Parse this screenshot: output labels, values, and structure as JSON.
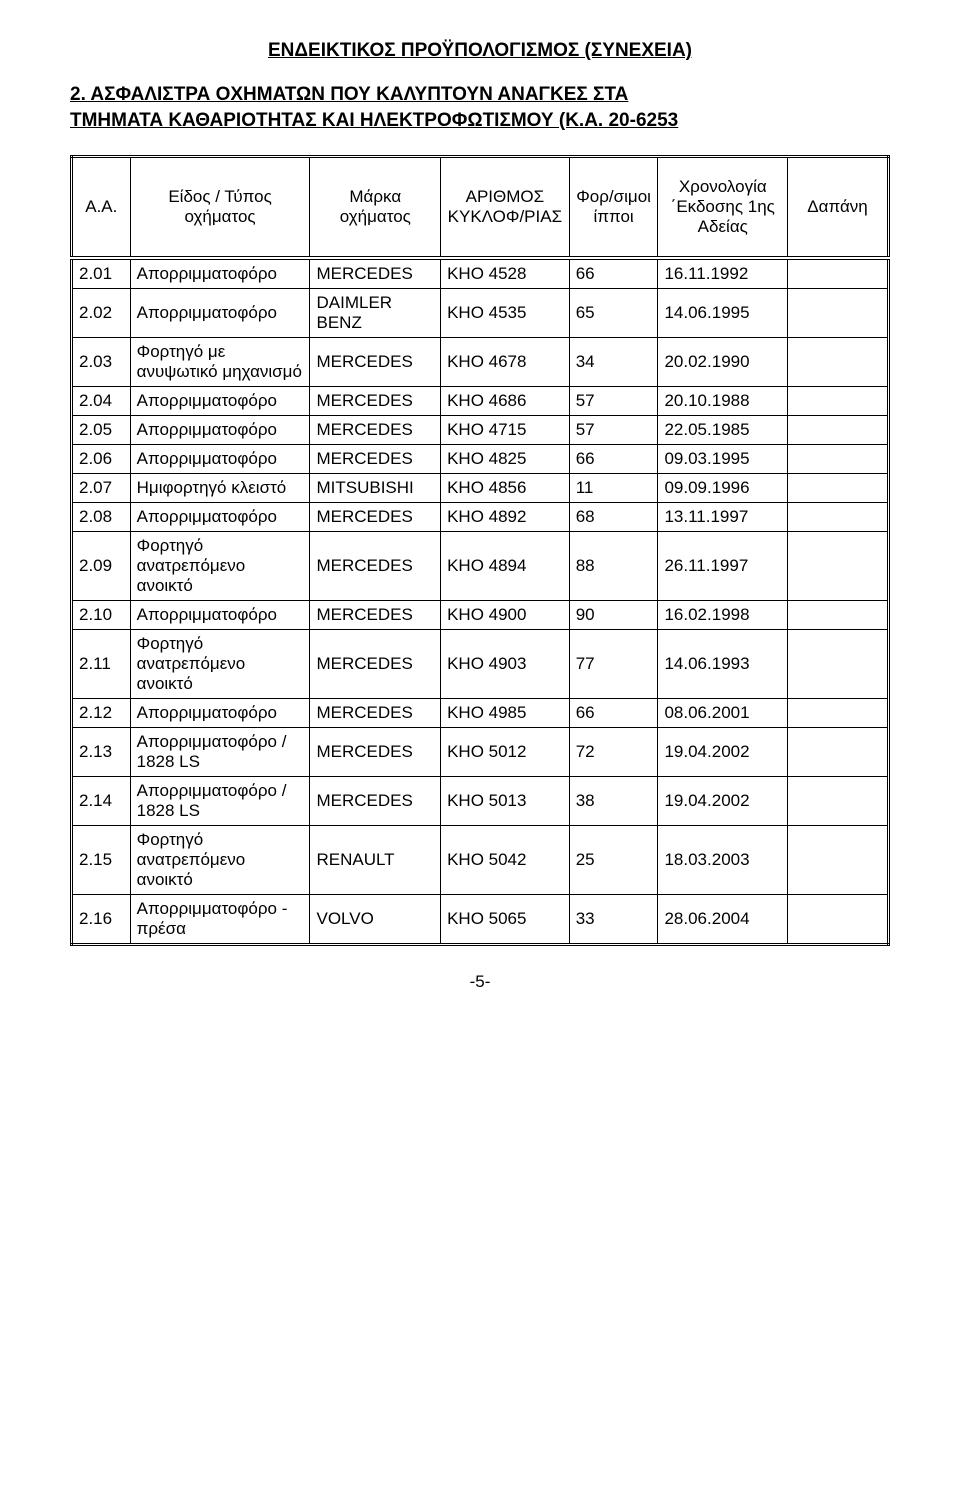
{
  "title": "ΕΝΔΕΙΚΤΙΚΟΣ ΠΡΟΫΠΟΛΟΓΙΣΜΟΣ (ΣΥΝΕΧΕΙΑ)",
  "subtitle_line1": "2.  ΑΣΦΑΛΙΣΤΡΑ ΟΧΗΜΑΤΩΝ ΠΟΥ ΚΑΛΥΠΤΟΥΝ ΑΝΑΓΚΕΣ ΣΤΑ",
  "subtitle_line2": "ΤΜΗΜΑΤΑ ΚΑΘΑΡΙΟΤΗΤΑΣ ΚΑΙ ΗΛΕΚΤΡΟΦΩΤΙΣΜΟΥ (Κ.Α. 20-6253",
  "headers": {
    "aa": "Α.Α.",
    "type": "Είδος / Τύπος οχήματος",
    "brand": "Μάρκα οχήματος",
    "plate": "ΑΡΙΘΜΟΣ ΚΥΚΛΟΦ/ΡΙΑΣ",
    "hp": "Φορ/σιμοι ίπποι",
    "date": "Χρονολογία ΄Εκδοσης 1ης Αδείας",
    "cost": "Δαπάνη"
  },
  "rows": [
    {
      "aa": "2.01",
      "type": "Απορριμματοφόρο",
      "brand": "MERCEDES",
      "plate": "ΚΗΟ 4528",
      "hp": "66",
      "date": "16.11.1992",
      "cost": ""
    },
    {
      "aa": "2.02",
      "type": "Απορριμματοφόρο",
      "brand": "DAIMLER BENZ",
      "plate": "ΚΗΟ 4535",
      "hp": "65",
      "date": "14.06.1995",
      "cost": ""
    },
    {
      "aa": "2.03",
      "type": "Φορτηγό με ανυψωτικό μηχανισμό",
      "brand": "MERCEDES",
      "plate": "ΚΗΟ 4678",
      "hp": "34",
      "date": "20.02.1990",
      "cost": ""
    },
    {
      "aa": "2.04",
      "type": "Απορριμματοφόρο",
      "brand": "MERCEDES",
      "plate": "ΚΗΟ 4686",
      "hp": "57",
      "date": "20.10.1988",
      "cost": ""
    },
    {
      "aa": "2.05",
      "type": "Απορριμματοφόρο",
      "brand": "MERCEDES",
      "plate": "ΚΗΟ 4715",
      "hp": "57",
      "date": "22.05.1985",
      "cost": ""
    },
    {
      "aa": "2.06",
      "type": "Απορριμματοφόρο",
      "brand": "MERCEDES",
      "plate": "ΚΗΟ 4825",
      "hp": "66",
      "date": "09.03.1995",
      "cost": ""
    },
    {
      "aa": "2.07",
      "type": "Ημιφορτηγό κλειστό",
      "brand": "MITSUBISHI",
      "plate": "ΚΗΟ 4856",
      "hp": "11",
      "date": "09.09.1996",
      "cost": ""
    },
    {
      "aa": "2.08",
      "type": "Απορριμματοφόρο",
      "brand": "MERCEDES",
      "plate": "ΚΗΟ 4892",
      "hp": "68",
      "date": "13.11.1997",
      "cost": ""
    },
    {
      "aa": "2.09",
      "type": "Φορτηγό ανατρεπόμενο ανοικτό",
      "brand": "MERCEDES",
      "plate": "ΚΗΟ 4894",
      "hp": "88",
      "date": "26.11.1997",
      "cost": ""
    },
    {
      "aa": "2.10",
      "type": "Απορριμματοφόρο",
      "brand": "MERCEDES",
      "plate": "ΚΗΟ 4900",
      "hp": "90",
      "date": "16.02.1998",
      "cost": ""
    },
    {
      "aa": "2.11",
      "type": "Φορτηγό ανατρεπόμενο ανοικτό",
      "brand": "MERCEDES",
      "plate": "ΚΗΟ 4903",
      "hp": "77",
      "date": "14.06.1993",
      "cost": ""
    },
    {
      "aa": "2.12",
      "type": "Απορριμματοφόρο",
      "brand": "MERCEDES",
      "plate": "ΚΗΟ 4985",
      "hp": "66",
      "date": "08.06.2001",
      "cost": ""
    },
    {
      "aa": "2.13",
      "type": "Απορριμματοφόρο / 1828 LS",
      "brand": "MERCEDES",
      "plate": "ΚΗΟ 5012",
      "hp": "72",
      "date": "19.04.2002",
      "cost": ""
    },
    {
      "aa": "2.14",
      "type": "Απορριμματοφόρο / 1828 LS",
      "brand": "MERCEDES",
      "plate": "ΚΗΟ 5013",
      "hp": "38",
      "date": "19.04.2002",
      "cost": ""
    },
    {
      "aa": "2.15",
      "type": "Φορτηγό ανατρεπόμενο ανοικτό",
      "brand": "RENAULT",
      "plate": "ΚΗΟ 5042",
      "hp": "25",
      "date": "18.03.2003",
      "cost": ""
    },
    {
      "aa": "2.16",
      "type": "Απορριμματοφόρο - πρέσα",
      "brand": "VOLVO",
      "plate": "ΚΗΟ 5065",
      "hp": "33",
      "date": "28.06.2004",
      "cost": ""
    }
  ],
  "footer": "-5-"
}
